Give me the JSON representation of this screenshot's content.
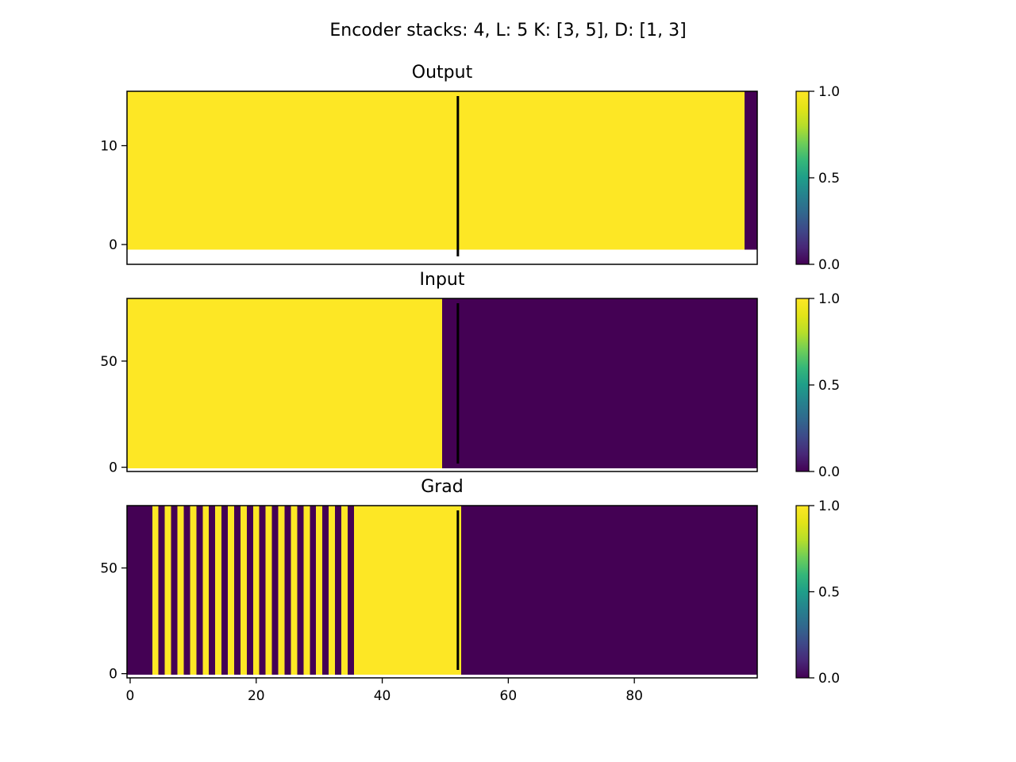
{
  "figure": {
    "suptitle": "Encoder stacks: 4, L: 5 K: [3, 5], D: [1, 3]"
  },
  "colors": {
    "high": "#fde725",
    "low": "#440154",
    "marker_line": "#000000",
    "colormap": "viridis"
  },
  "chart_data": [
    {
      "type": "heatmap",
      "title": "Output",
      "xlim": [
        -0.5,
        99.5
      ],
      "ylim": [
        -2,
        15.5
      ],
      "yticks": [
        0,
        10
      ],
      "show_xticks": false,
      "marker_x": 52,
      "segments": [
        {
          "from": -0.5,
          "to": 97.5,
          "value": 1
        },
        {
          "from": 97.5,
          "to": 99.5,
          "value": 0
        }
      ],
      "data_ylim": [
        -0.5,
        15.5
      ],
      "colorbar": {
        "ticks": [
          "0.0",
          "0.5",
          "1.0"
        ],
        "range": [
          0,
          1
        ]
      }
    },
    {
      "type": "heatmap",
      "title": "Input",
      "xlim": [
        -0.5,
        99.5
      ],
      "ylim": [
        -2,
        79.5
      ],
      "yticks": [
        0,
        50
      ],
      "show_xticks": false,
      "marker_x": 52,
      "segments": [
        {
          "from": -0.5,
          "to": 49.5,
          "value": 1
        },
        {
          "from": 49.5,
          "to": 99.5,
          "value": 0
        }
      ],
      "data_ylim": [
        -0.5,
        79.5
      ],
      "colorbar": {
        "ticks": [
          "0.0",
          "0.5",
          "1.0"
        ],
        "range": [
          0,
          1
        ]
      }
    },
    {
      "type": "heatmap",
      "title": "Grad",
      "xlim": [
        -0.5,
        99.5
      ],
      "ylim": [
        -2,
        79.5
      ],
      "yticks": [
        0,
        50
      ],
      "xticks": [
        0,
        20,
        40,
        60,
        80
      ],
      "show_xticks": true,
      "marker_x": 52,
      "segments": [
        {
          "from": -0.5,
          "to": 3.5,
          "value": 0
        },
        {
          "from": 3.5,
          "to": 4.5,
          "value": 1
        },
        {
          "from": 4.5,
          "to": 5.5,
          "value": 0
        },
        {
          "from": 5.5,
          "to": 6.5,
          "value": 1
        },
        {
          "from": 6.5,
          "to": 7.5,
          "value": 0
        },
        {
          "from": 7.5,
          "to": 8.5,
          "value": 1
        },
        {
          "from": 8.5,
          "to": 9.5,
          "value": 0
        },
        {
          "from": 9.5,
          "to": 10.5,
          "value": 1
        },
        {
          "from": 10.5,
          "to": 11.5,
          "value": 0
        },
        {
          "from": 11.5,
          "to": 12.5,
          "value": 1
        },
        {
          "from": 12.5,
          "to": 13.5,
          "value": 0
        },
        {
          "from": 13.5,
          "to": 14.5,
          "value": 1
        },
        {
          "from": 14.5,
          "to": 15.5,
          "value": 0
        },
        {
          "from": 15.5,
          "to": 16.5,
          "value": 1
        },
        {
          "from": 16.5,
          "to": 17.5,
          "value": 0
        },
        {
          "from": 17.5,
          "to": 18.5,
          "value": 1
        },
        {
          "from": 18.5,
          "to": 19.5,
          "value": 0
        },
        {
          "from": 19.5,
          "to": 20.5,
          "value": 1
        },
        {
          "from": 20.5,
          "to": 21.5,
          "value": 0
        },
        {
          "from": 21.5,
          "to": 22.5,
          "value": 1
        },
        {
          "from": 22.5,
          "to": 23.5,
          "value": 0
        },
        {
          "from": 23.5,
          "to": 24.5,
          "value": 1
        },
        {
          "from": 24.5,
          "to": 25.5,
          "value": 0
        },
        {
          "from": 25.5,
          "to": 26.5,
          "value": 1
        },
        {
          "from": 26.5,
          "to": 27.5,
          "value": 0
        },
        {
          "from": 27.5,
          "to": 28.5,
          "value": 1
        },
        {
          "from": 28.5,
          "to": 29.5,
          "value": 0
        },
        {
          "from": 29.5,
          "to": 30.5,
          "value": 1
        },
        {
          "from": 30.5,
          "to": 31.5,
          "value": 0
        },
        {
          "from": 31.5,
          "to": 32.5,
          "value": 1
        },
        {
          "from": 32.5,
          "to": 33.5,
          "value": 0
        },
        {
          "from": 33.5,
          "to": 34.5,
          "value": 1
        },
        {
          "from": 34.5,
          "to": 35.5,
          "value": 0
        },
        {
          "from": 35.5,
          "to": 52.5,
          "value": 1
        },
        {
          "from": 52.5,
          "to": 99.5,
          "value": 0
        }
      ],
      "data_ylim": [
        -0.5,
        79.5
      ],
      "colorbar": {
        "ticks": [
          "0.0",
          "0.5",
          "1.0"
        ],
        "range": [
          0,
          1
        ]
      }
    }
  ]
}
